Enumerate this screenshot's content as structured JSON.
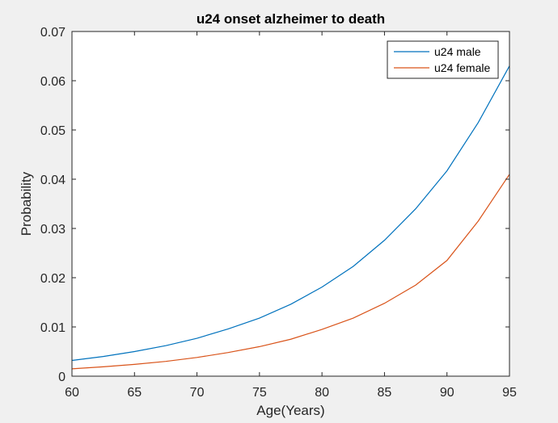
{
  "figure": {
    "background": "#f0f0f0"
  },
  "chart_data": {
    "type": "line",
    "title": "u24 onset alzheimer to death",
    "xlabel": "Age(Years)",
    "ylabel": "Probability",
    "xlim": [
      60,
      95
    ],
    "ylim": [
      0,
      0.07
    ],
    "xticks": [
      60,
      65,
      70,
      75,
      80,
      85,
      90,
      95
    ],
    "yticks": [
      0,
      0.01,
      0.02,
      0.03,
      0.04,
      0.05,
      0.06,
      0.07
    ],
    "xtick_labels": [
      "60",
      "65",
      "70",
      "75",
      "80",
      "85",
      "90",
      "95"
    ],
    "ytick_labels": [
      "0",
      "0.01",
      "0.02",
      "0.03",
      "0.04",
      "0.05",
      "0.06",
      "0.07"
    ],
    "grid": false,
    "legend_position": "top-right",
    "x": [
      60,
      62.5,
      65,
      67.5,
      70,
      72.5,
      75,
      77.5,
      80,
      82.5,
      85,
      87.5,
      90,
      92.5,
      95
    ],
    "series": [
      {
        "name": "u24 male",
        "color": "#0072bd",
        "values": [
          0.0032,
          0.004,
          0.005,
          0.0062,
          0.0077,
          0.0096,
          0.0118,
          0.0146,
          0.0181,
          0.0223,
          0.0276,
          0.034,
          0.0417,
          0.0515,
          0.063
        ]
      },
      {
        "name": "u24 female",
        "color": "#d95319",
        "values": [
          0.0015,
          0.0019,
          0.0024,
          0.003,
          0.0038,
          0.0048,
          0.006,
          0.0075,
          0.0095,
          0.0118,
          0.0148,
          0.0185,
          0.0235,
          0.0315,
          0.041
        ]
      }
    ]
  }
}
